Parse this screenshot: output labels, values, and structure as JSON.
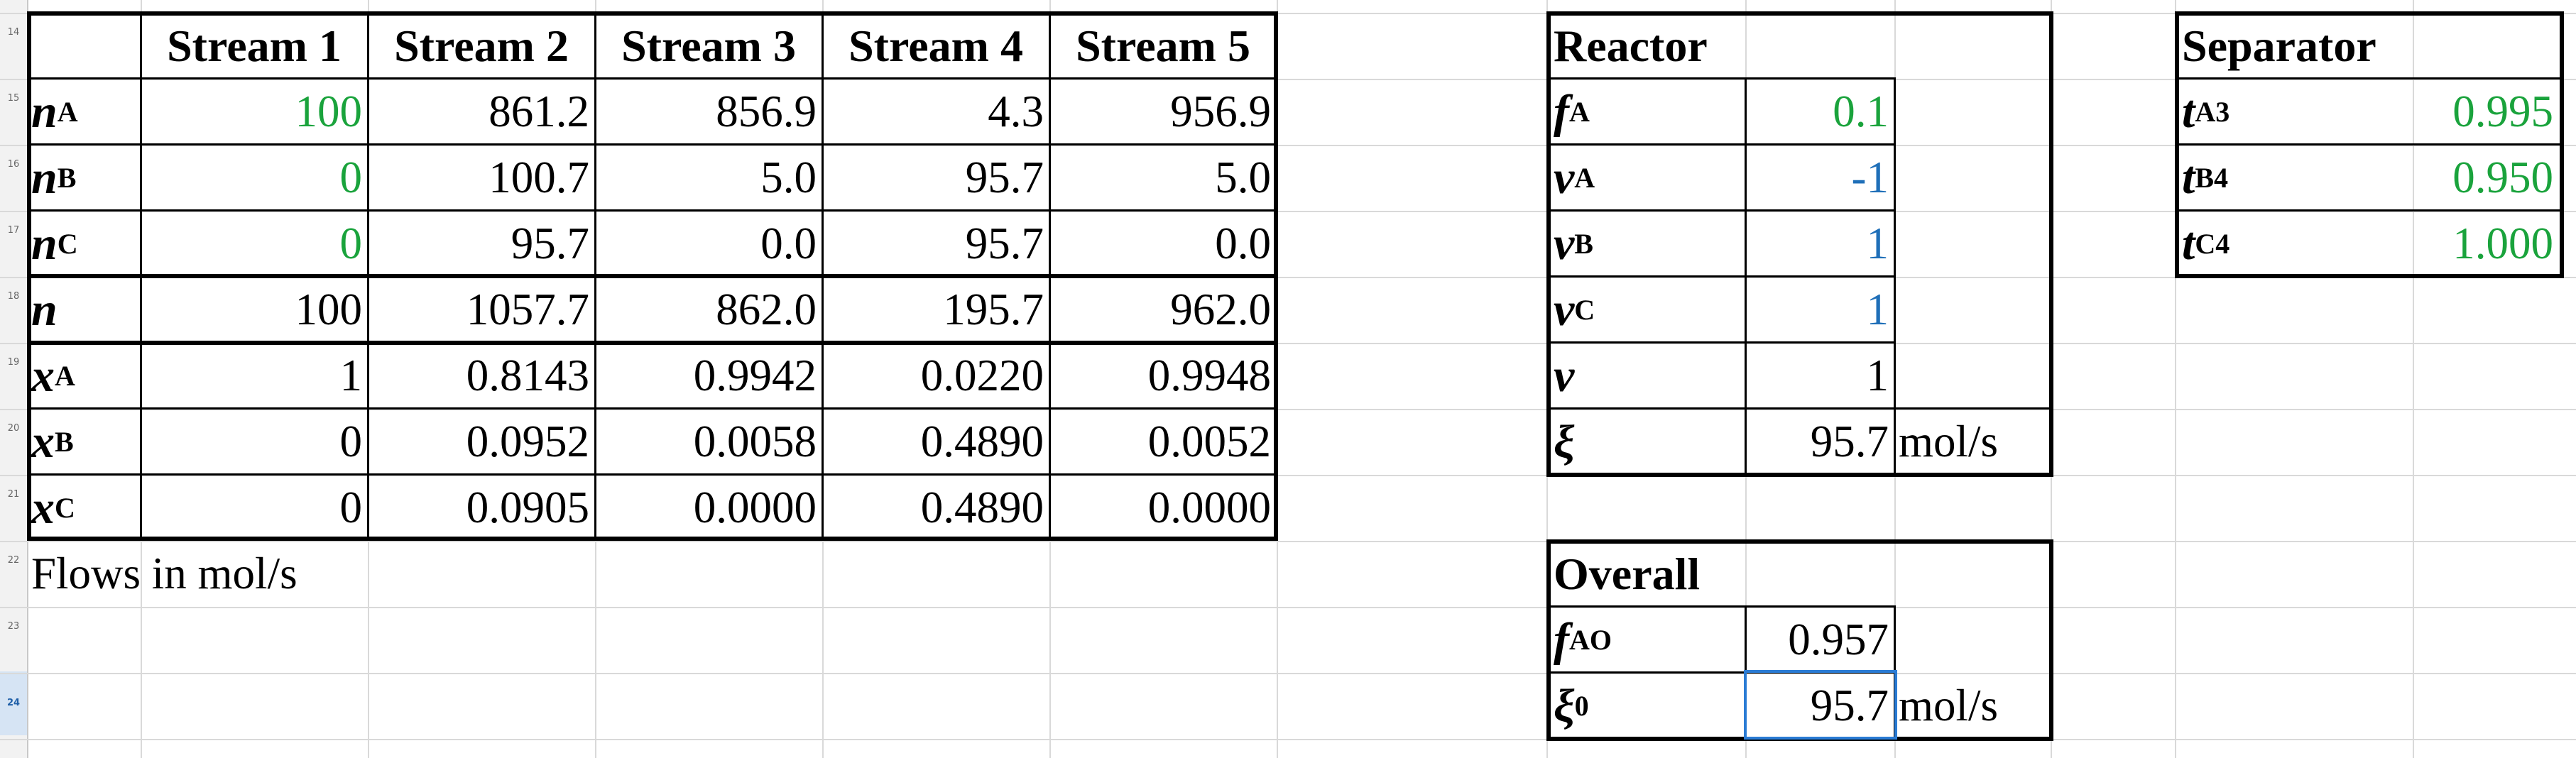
{
  "row_numbers": [
    "14",
    "15",
    "16",
    "17",
    "18",
    "19",
    "20",
    "21",
    "22",
    "23",
    "24"
  ],
  "active_row": "24",
  "streams_table": {
    "column_headers": [
      "Stream 1",
      "Stream 2",
      "Stream 3",
      "Stream 4",
      "Stream 5"
    ],
    "rows": [
      {
        "var": "n",
        "sub": "A",
        "values": [
          "100",
          "861.2",
          "856.9",
          "4.3",
          "956.9"
        ]
      },
      {
        "var": "n",
        "sub": "B",
        "values": [
          "0",
          "100.7",
          "5.0",
          "95.7",
          "5.0"
        ]
      },
      {
        "var": "n",
        "sub": "C",
        "values": [
          "0",
          "95.7",
          "0.0",
          "95.7",
          "0.0"
        ]
      },
      {
        "var": "n",
        "sub": "",
        "values": [
          "100",
          "1057.7",
          "862.0",
          "195.7",
          "962.0"
        ]
      },
      {
        "var": "x",
        "sub": "A",
        "values": [
          "1",
          "0.8143",
          "0.9942",
          "0.0220",
          "0.9948"
        ]
      },
      {
        "var": "x",
        "sub": "B",
        "values": [
          "0",
          "0.0952",
          "0.0058",
          "0.4890",
          "0.0052"
        ]
      },
      {
        "var": "x",
        "sub": "C",
        "values": [
          "0",
          "0.0905",
          "0.0000",
          "0.4890",
          "0.0000"
        ]
      }
    ],
    "input_color": "#1aa33c",
    "note": "Flows in mol/s"
  },
  "reactor": {
    "title": "Reactor",
    "rows": [
      {
        "var": "f",
        "sub": "A",
        "value": "0.1",
        "unit": ""
      },
      {
        "var": "ν",
        "sub": "A",
        "value": "-1",
        "unit": ""
      },
      {
        "var": "ν",
        "sub": "B",
        "value": "1",
        "unit": ""
      },
      {
        "var": "ν",
        "sub": "C",
        "value": "1",
        "unit": ""
      },
      {
        "var": "ν",
        "sub": "",
        "value": "1",
        "unit": ""
      },
      {
        "var": "ξ",
        "sub": "",
        "value": "95.7",
        "unit": "mol/s"
      }
    ],
    "input_color": "#1aa33c",
    "coefficient_color": "#1f6fb8"
  },
  "separator": {
    "title": "Separator",
    "rows": [
      {
        "var": "t",
        "sub": "A3",
        "value": "0.995"
      },
      {
        "var": "t",
        "sub": "B4",
        "value": "0.950"
      },
      {
        "var": "t",
        "sub": "C4",
        "value": "1.000"
      }
    ],
    "input_color": "#1aa33c"
  },
  "overall": {
    "title": "Overall",
    "rows": [
      {
        "var": "f",
        "sub": "AO",
        "value": "0.957",
        "unit": ""
      },
      {
        "var": "ξ",
        "sub": "0",
        "value": "95.7",
        "unit": "mol/s"
      }
    ],
    "selection_color": "#2a7bd4"
  },
  "gridline_color": "#d9d9d9"
}
